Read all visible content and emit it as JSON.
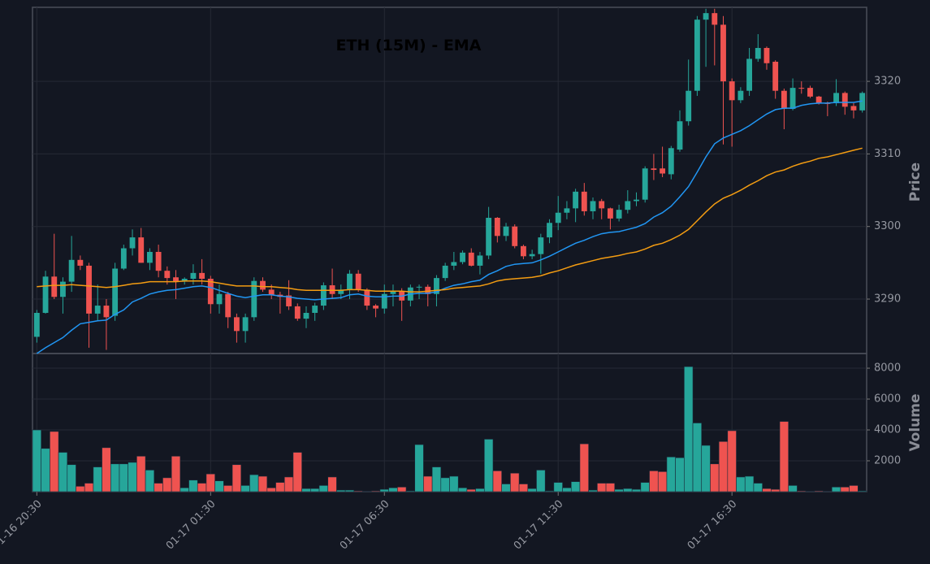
{
  "chart_data": [
    {
      "type": "candlestick",
      "title": "ETH (15M) - EMA",
      "ylabel": "Price",
      "up_color": "#26a69a",
      "down_color": "#ef5350",
      "grid": true,
      "ylim": [
        3282.5,
        3330.2
      ],
      "yticks": [
        3290,
        3300,
        3310,
        3320
      ],
      "open": [
        3284.8,
        3288.1,
        3293.1,
        3290.3,
        3292.4,
        3295.4,
        3294.6,
        3288.0,
        3289.1,
        3287.7,
        3294.2,
        3297.0,
        3298.5,
        3295.0,
        3296.5,
        3293.9,
        3293.0,
        3292.4,
        3292.8,
        3293.6,
        3292.8,
        3289.3,
        3290.7,
        3287.5,
        3285.6,
        3287.5,
        3292.5,
        3291.3,
        3290.6,
        3290.5,
        3289.0,
        3287.3,
        3288.1,
        3289.1,
        3291.9,
        3290.7,
        3291.3,
        3293.5,
        3291.3,
        3289.1,
        3288.7,
        3290.7,
        3291.1,
        3289.8,
        3291.6,
        3291.7,
        3290.7,
        3292.9,
        3294.6,
        3295.1,
        3296.4,
        3294.6,
        3296.0,
        3301.2,
        3298.7,
        3300.0,
        3297.3,
        3295.9,
        3296.2,
        3298.5,
        3300.5,
        3301.9,
        3302.5,
        3304.8,
        3302.1,
        3303.5,
        3302.5,
        3301.1,
        3302.3,
        3303.5,
        3303.7,
        3308.0,
        3308.0,
        3307.2,
        3310.6,
        3314.5,
        3318.7,
        3328.5,
        3329.4,
        3327.8,
        3320.0,
        3317.4,
        3318.7,
        3323.1,
        3324.6,
        3322.7,
        3318.7,
        3316.2,
        3319.1,
        3319.1,
        3317.9,
        3317.0,
        3317.0,
        3318.4,
        3316.6,
        3316.0
      ],
      "high": [
        3288.5,
        3293.9,
        3299.0,
        3293.0,
        3298.7,
        3296.0,
        3295.0,
        3292.0,
        3290.0,
        3295.0,
        3297.5,
        3299.6,
        3299.8,
        3297.0,
        3297.5,
        3294.5,
        3294.0,
        3293.0,
        3294.8,
        3295.5,
        3293.2,
        3292.0,
        3291.0,
        3288.0,
        3288.0,
        3293.0,
        3293.0,
        3292.0,
        3291.0,
        3292.6,
        3289.4,
        3289.0,
        3289.5,
        3292.3,
        3294.2,
        3292.0,
        3294.0,
        3294.0,
        3291.5,
        3289.3,
        3292.0,
        3292.0,
        3291.5,
        3292.0,
        3292.0,
        3292.0,
        3293.3,
        3295.0,
        3296.5,
        3296.7,
        3297.0,
        3296.5,
        3302.7,
        3301.3,
        3300.5,
        3300.3,
        3297.5,
        3296.8,
        3299.0,
        3301.0,
        3304.2,
        3303.5,
        3305.2,
        3306.0,
        3304.0,
        3303.8,
        3302.6,
        3303.0,
        3305.0,
        3304.7,
        3308.3,
        3310.0,
        3311.0,
        3311.1,
        3316.0,
        3323.0,
        3329.0,
        3330.0,
        3330.0,
        3329.0,
        3320.4,
        3319.2,
        3324.6,
        3326.5,
        3324.8,
        3322.9,
        3319.0,
        3320.4,
        3320.0,
        3319.4,
        3318.0,
        3317.2,
        3320.3,
        3318.6,
        3317.0,
        3318.6
      ],
      "low": [
        3284.0,
        3288.0,
        3290.0,
        3288.0,
        3291.0,
        3294.0,
        3283.3,
        3287.0,
        3283.0,
        3287.0,
        3294.0,
        3296.0,
        3295.0,
        3294.0,
        3293.0,
        3292.0,
        3290.0,
        3292.0,
        3292.0,
        3292.0,
        3288.0,
        3288.0,
        3286.0,
        3284.0,
        3284.0,
        3287.0,
        3291.0,
        3290.0,
        3288.0,
        3288.5,
        3287.0,
        3286.0,
        3287.0,
        3288.5,
        3290.0,
        3290.0,
        3290.0,
        3291.0,
        3288.5,
        3287.5,
        3288.0,
        3289.0,
        3287.0,
        3289.0,
        3290.0,
        3289.0,
        3289.0,
        3292.5,
        3294.0,
        3294.8,
        3294.5,
        3293.4,
        3295.5,
        3297.8,
        3298.0,
        3297.0,
        3295.5,
        3295.5,
        3293.5,
        3297.7,
        3299.5,
        3301.0,
        3300.6,
        3301.5,
        3301.0,
        3301.0,
        3299.6,
        3300.7,
        3301.8,
        3302.8,
        3303.3,
        3306.4,
        3306.8,
        3306.5,
        3310.3,
        3313.9,
        3318.0,
        3322.0,
        3322.2,
        3311.3,
        3311.0,
        3317.0,
        3318.0,
        3322.7,
        3321.6,
        3317.6,
        3313.4,
        3316.0,
        3318.3,
        3317.7,
        3316.8,
        3315.2,
        3316.6,
        3315.4,
        3314.9,
        3315.7
      ],
      "close": [
        3288.1,
        3293.1,
        3290.3,
        3292.4,
        3295.4,
        3294.6,
        3288.0,
        3289.1,
        3287.5,
        3294.2,
        3297.0,
        3298.5,
        3295.0,
        3296.5,
        3293.9,
        3292.9,
        3292.4,
        3292.8,
        3293.6,
        3292.8,
        3289.3,
        3290.7,
        3287.5,
        3285.6,
        3287.5,
        3292.5,
        3291.3,
        3290.6,
        3290.3,
        3289.0,
        3287.3,
        3288.1,
        3289.1,
        3291.9,
        3290.7,
        3291.3,
        3293.5,
        3291.3,
        3289.1,
        3288.7,
        3290.7,
        3291.1,
        3289.8,
        3291.6,
        3291.7,
        3290.7,
        3292.9,
        3294.6,
        3295.1,
        3296.4,
        3294.6,
        3296.0,
        3301.2,
        3298.7,
        3300.0,
        3297.3,
        3295.9,
        3296.2,
        3298.5,
        3300.5,
        3301.9,
        3302.5,
        3304.8,
        3302.1,
        3303.5,
        3302.5,
        3301.1,
        3302.3,
        3303.5,
        3303.7,
        3308.0,
        3307.8,
        3307.3,
        3310.8,
        3314.5,
        3318.7,
        3328.5,
        3329.4,
        3327.8,
        3320.0,
        3317.4,
        3318.7,
        3323.1,
        3324.6,
        3322.5,
        3318.7,
        3316.2,
        3319.1,
        3319.0,
        3317.9,
        3317.0,
        3316.9,
        3318.4,
        3316.5,
        3316.0,
        3318.4
      ],
      "series": [
        {
          "color": "#2196f3",
          "values": [
            3282.5,
            3283.3,
            3284.0,
            3284.7,
            3285.7,
            3286.6,
            3286.8,
            3287.0,
            3287.1,
            3287.9,
            3288.5,
            3289.6,
            3290.1,
            3290.7,
            3291.0,
            3291.2,
            3291.3,
            3291.5,
            3291.7,
            3291.8,
            3291.6,
            3291.2,
            3290.8,
            3290.4,
            3290.2,
            3290.4,
            3290.6,
            3290.6,
            3290.4,
            3290.3,
            3290.1,
            3290.0,
            3289.9,
            3290.0,
            3290.1,
            3290.2,
            3290.6,
            3290.7,
            3290.4,
            3290.3,
            3290.3,
            3290.4,
            3290.4,
            3290.7,
            3290.8,
            3290.8,
            3291.0,
            3291.5,
            3291.9,
            3292.1,
            3292.4,
            3292.6,
            3293.4,
            3293.9,
            3294.5,
            3294.8,
            3294.9,
            3295.0,
            3295.4,
            3295.9,
            3296.5,
            3297.1,
            3297.7,
            3298.1,
            3298.6,
            3299.0,
            3299.2,
            3299.3,
            3299.6,
            3299.9,
            3300.4,
            3301.3,
            3301.9,
            3302.8,
            3304.1,
            3305.5,
            3307.5,
            3309.6,
            3311.4,
            3312.2,
            3312.7,
            3313.2,
            3313.9,
            3314.7,
            3315.5,
            3316.1,
            3316.3,
            3316.3,
            3316.7,
            3316.9,
            3317.0,
            3317.0,
            3317.1,
            3317.1,
            3317.1,
            3317.3
          ]
        },
        {
          "color": "#f39c12",
          "values": [
            3291.7,
            3291.8,
            3291.9,
            3291.9,
            3292.0,
            3291.9,
            3291.8,
            3291.7,
            3291.6,
            3291.7,
            3291.9,
            3292.1,
            3292.2,
            3292.4,
            3292.4,
            3292.4,
            3292.4,
            3292.5,
            3292.5,
            3292.5,
            3292.4,
            3292.2,
            3292.0,
            3291.8,
            3291.8,
            3291.8,
            3291.7,
            3291.7,
            3291.6,
            3291.5,
            3291.3,
            3291.2,
            3291.2,
            3291.2,
            3291.2,
            3291.2,
            3291.3,
            3291.3,
            3291.2,
            3291.1,
            3291.1,
            3291.1,
            3291.1,
            3291.0,
            3291.0,
            3291.1,
            3291.2,
            3291.3,
            3291.5,
            3291.6,
            3291.7,
            3291.8,
            3292.1,
            3292.5,
            3292.7,
            3292.8,
            3292.9,
            3293.0,
            3293.2,
            3293.6,
            3293.9,
            3294.3,
            3294.7,
            3295.0,
            3295.3,
            3295.6,
            3295.8,
            3296.0,
            3296.3,
            3296.5,
            3296.9,
            3297.4,
            3297.7,
            3298.2,
            3298.8,
            3299.6,
            3300.8,
            3302.0,
            3303.1,
            3303.9,
            3304.4,
            3305.0,
            3305.7,
            3306.3,
            3307.0,
            3307.5,
            3307.8,
            3308.3,
            3308.7,
            3309.0,
            3309.4,
            3309.6,
            3309.9,
            3310.2,
            3310.5,
            3310.8
          ]
        }
      ]
    },
    {
      "type": "bar",
      "ylabel": "Volume",
      "grid": true,
      "ylim": [
        0,
        8950
      ],
      "yticks": [
        2000,
        4000,
        6000,
        8000
      ],
      "categories": [
        "01-16 20:30",
        null,
        null,
        null,
        null,
        null,
        null,
        null,
        null,
        null,
        null,
        null,
        null,
        null,
        null,
        null,
        null,
        null,
        null,
        null,
        "01-17 01:30",
        null,
        null,
        null,
        null,
        null,
        null,
        null,
        null,
        null,
        null,
        null,
        null,
        null,
        null,
        null,
        null,
        null,
        null,
        null,
        "01-17 06:30",
        null,
        null,
        null,
        null,
        null,
        null,
        null,
        null,
        null,
        null,
        null,
        null,
        null,
        null,
        null,
        null,
        null,
        null,
        null,
        "01-17 11:30",
        null,
        null,
        null,
        null,
        null,
        null,
        null,
        null,
        null,
        null,
        null,
        null,
        null,
        null,
        null,
        null,
        null,
        null,
        null,
        "01-17 16:30",
        null,
        null,
        null,
        null,
        null,
        null,
        null,
        null,
        null,
        null,
        null,
        null,
        null,
        null,
        null
      ],
      "values": [
        4000,
        2800,
        3900,
        2550,
        1750,
        350,
        550,
        1600,
        2850,
        1800,
        1800,
        1900,
        2300,
        1400,
        550,
        900,
        2300,
        250,
        750,
        550,
        1150,
        700,
        400,
        1750,
        400,
        1100,
        1000,
        250,
        600,
        950,
        2550,
        200,
        200,
        400,
        950,
        100,
        100,
        50,
        30,
        50,
        150,
        250,
        300,
        50,
        3050,
        1000,
        1600,
        900,
        1000,
        250,
        150,
        200,
        3400,
        1350,
        500,
        1200,
        500,
        200,
        1400,
        50,
        600,
        250,
        650,
        3100,
        100,
        550,
        550,
        150,
        200,
        150,
        600,
        1350,
        1300,
        2250,
        2200,
        8100,
        4450,
        3000,
        1800,
        3250,
        3950,
        950,
        1000,
        550,
        200,
        150,
        4550,
        400,
        50,
        30,
        50,
        30,
        300,
        300,
        400,
        50
      ]
    }
  ]
}
